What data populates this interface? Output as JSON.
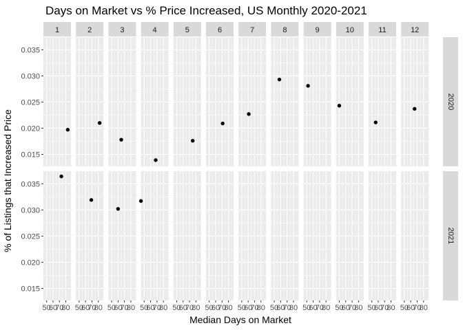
{
  "chart_data": {
    "type": "scatter",
    "title": "Days on Market vs % Price Increased, US Monthly 2020-2021",
    "xlabel": "Median Days on Market",
    "ylabel": "% of Listings that Increased Price",
    "facet_cols": [
      "1",
      "2",
      "3",
      "4",
      "5",
      "6",
      "7",
      "8",
      "9",
      "10",
      "11",
      "12"
    ],
    "facet_rows": [
      "2020",
      "2021"
    ],
    "xlim": [
      45,
      88
    ],
    "ylim": [
      0.0127,
      0.0374
    ],
    "x_ticks": [
      50,
      60,
      70,
      80
    ],
    "x_tick_labels": [
      "50",
      "60",
      "70",
      "80"
    ],
    "y_ticks": [
      0.015,
      0.02,
      0.025,
      0.03,
      0.035
    ],
    "y_tick_labels": [
      "0.015",
      "0.020",
      "0.025",
      "0.030",
      "0.035"
    ],
    "grid": true,
    "points": [
      {
        "year": "2020",
        "month": "1",
        "x": 83,
        "y": 0.0197
      },
      {
        "year": "2020",
        "month": "2",
        "x": 82,
        "y": 0.021
      },
      {
        "year": "2020",
        "month": "3",
        "x": 65,
        "y": 0.0178
      },
      {
        "year": "2020",
        "month": "4",
        "x": 68,
        "y": 0.0139
      },
      {
        "year": "2020",
        "month": "5",
        "x": 75,
        "y": 0.0176
      },
      {
        "year": "2020",
        "month": "6",
        "x": 71,
        "y": 0.0209
      },
      {
        "year": "2020",
        "month": "7",
        "x": 61,
        "y": 0.0227
      },
      {
        "year": "2020",
        "month": "8",
        "x": 58,
        "y": 0.0293
      },
      {
        "year": "2020",
        "month": "9",
        "x": 52,
        "y": 0.0281
      },
      {
        "year": "2020",
        "month": "10",
        "x": 50,
        "y": 0.0243
      },
      {
        "year": "2020",
        "month": "11",
        "x": 56,
        "y": 0.0211
      },
      {
        "year": "2020",
        "month": "12",
        "x": 66,
        "y": 0.0237
      },
      {
        "year": "2021",
        "month": "1",
        "x": 73,
        "y": 0.0364
      },
      {
        "year": "2021",
        "month": "2",
        "x": 69,
        "y": 0.0319
      },
      {
        "year": "2021",
        "month": "3",
        "x": 60,
        "y": 0.0302
      },
      {
        "year": "2021",
        "month": "4",
        "x": 45,
        "y": 0.0317
      }
    ]
  },
  "colors": {
    "panel_background": "#ebebeb",
    "strip_background": "#d9d9d9",
    "grid_major": "#ffffff",
    "point": "#000000"
  }
}
